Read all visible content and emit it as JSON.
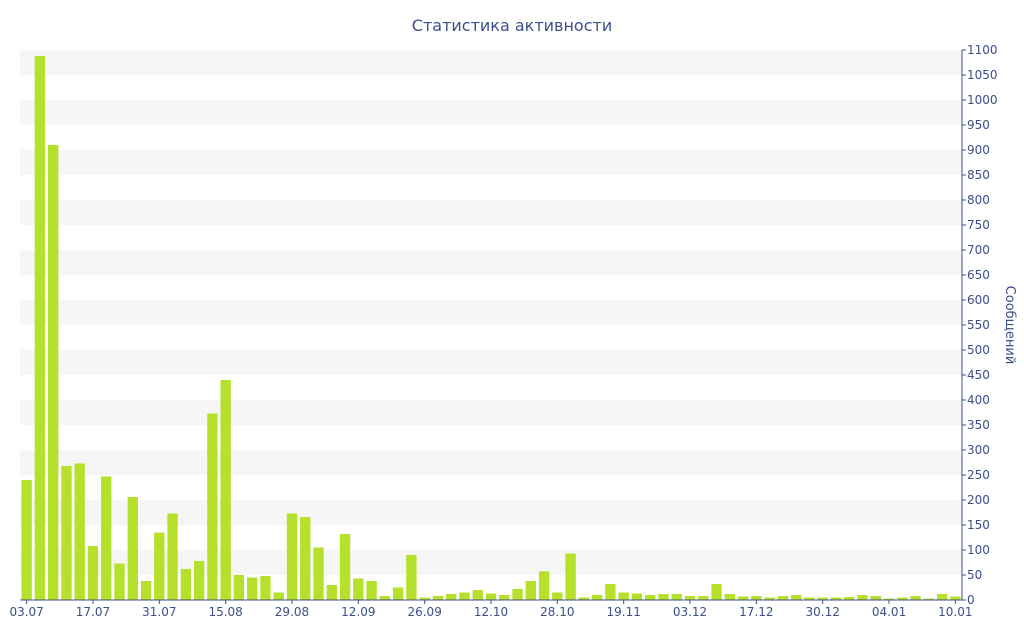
{
  "chart_data": {
    "type": "bar",
    "title": "Статистика активности",
    "ylabel": "Сообщений",
    "xlabel": "",
    "ylim": [
      0,
      1100
    ],
    "y_ticks": [
      0,
      50,
      100,
      150,
      200,
      250,
      300,
      350,
      400,
      450,
      500,
      550,
      600,
      650,
      700,
      750,
      800,
      850,
      900,
      950,
      1000,
      1050,
      1100
    ],
    "y_axis_side": "right",
    "grid": "horizontal bands",
    "x_tick_labels": [
      {
        "index": 0,
        "label": "03.07"
      },
      {
        "index": 5,
        "label": "17.07"
      },
      {
        "index": 10,
        "label": "31.07"
      },
      {
        "index": 15,
        "label": "15.08"
      },
      {
        "index": 20,
        "label": "29.08"
      },
      {
        "index": 25,
        "label": "12.09"
      },
      {
        "index": 30,
        "label": "26.09"
      },
      {
        "index": 35,
        "label": "12.10"
      },
      {
        "index": 40,
        "label": "28.10"
      },
      {
        "index": 45,
        "label": "19.11"
      },
      {
        "index": 50,
        "label": "03.12"
      },
      {
        "index": 55,
        "label": "17.12"
      },
      {
        "index": 60,
        "label": "30.12"
      },
      {
        "index": 65,
        "label": "04.01"
      },
      {
        "index": 70,
        "label": "10.01"
      }
    ],
    "values": [
      240,
      1088,
      910,
      268,
      273,
      108,
      247,
      73,
      206,
      38,
      135,
      173,
      62,
      78,
      373,
      440,
      50,
      45,
      48,
      15,
      173,
      166,
      105,
      30,
      132,
      43,
      38,
      8,
      25,
      90,
      5,
      8,
      12,
      15,
      20,
      13,
      10,
      22,
      38,
      57,
      15,
      93,
      5,
      10,
      32,
      15,
      13,
      10,
      12,
      12,
      8,
      8,
      32,
      12,
      7,
      8,
      5,
      8,
      10,
      5,
      5,
      5,
      6,
      10,
      8,
      3,
      5,
      8,
      3,
      12,
      7
    ],
    "colors": {
      "bar": "#b5e02b",
      "band": "#f6f6f6",
      "text": "#3c4f8a",
      "axis": "#3c4f8a"
    }
  }
}
